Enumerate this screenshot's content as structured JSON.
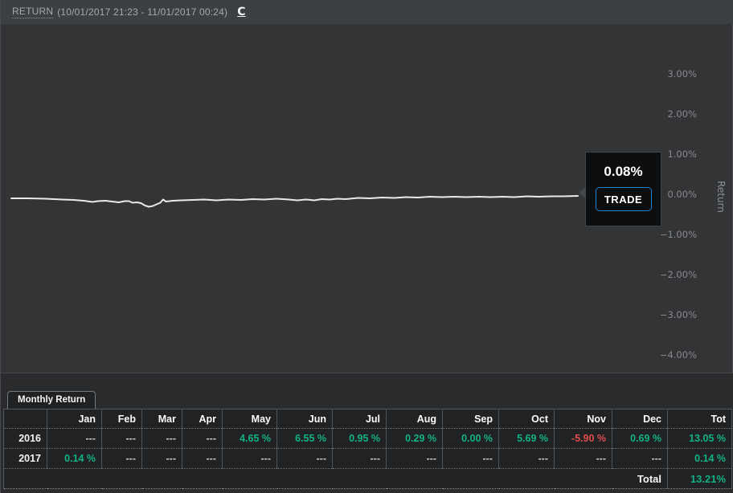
{
  "header": {
    "title": "RETURN",
    "date_range": "(10/01/2017 21:23 - 11/01/2017 00:24)",
    "refresh_icon": "C"
  },
  "chart_data": {
    "type": "line",
    "title": "Return over period 10/01/2017 21:23 - 11/01/2017 00:24",
    "xlabel": "",
    "ylabel": "Return",
    "ylim": [
      -4.6,
      3.9
    ],
    "grid": false,
    "legend": "none",
    "y_ticks": [
      "3.00%",
      "2.00%",
      "1.00%",
      "0.00%",
      "−1.00%",
      "−2.00%",
      "−3.00%",
      "−4.00%"
    ],
    "y_tick_values": [
      3,
      2,
      1,
      0,
      -1,
      -2,
      -3,
      -4
    ],
    "line_color": "#e7e9eb",
    "series": [
      {
        "name": "Return %",
        "points": [
          [
            0.0,
            -0.1
          ],
          [
            0.03,
            -0.1
          ],
          [
            0.06,
            -0.11
          ],
          [
            0.09,
            -0.13
          ],
          [
            0.11,
            -0.14
          ],
          [
            0.128,
            -0.16
          ],
          [
            0.143,
            -0.19
          ],
          [
            0.153,
            -0.17
          ],
          [
            0.166,
            -0.16
          ],
          [
            0.178,
            -0.18
          ],
          [
            0.19,
            -0.2
          ],
          [
            0.2,
            -0.17
          ],
          [
            0.208,
            -0.17
          ],
          [
            0.214,
            -0.21
          ],
          [
            0.222,
            -0.2
          ],
          [
            0.229,
            -0.22
          ],
          [
            0.236,
            -0.28
          ],
          [
            0.243,
            -0.31
          ],
          [
            0.25,
            -0.29
          ],
          [
            0.258,
            -0.24
          ],
          [
            0.263,
            -0.21
          ],
          [
            0.268,
            -0.13
          ],
          [
            0.273,
            -0.18
          ],
          [
            0.285,
            -0.16
          ],
          [
            0.3,
            -0.15
          ],
          [
            0.32,
            -0.14
          ],
          [
            0.34,
            -0.13
          ],
          [
            0.362,
            -0.15
          ],
          [
            0.384,
            -0.13
          ],
          [
            0.405,
            -0.14
          ],
          [
            0.426,
            -0.12
          ],
          [
            0.447,
            -0.13
          ],
          [
            0.468,
            -0.11
          ],
          [
            0.49,
            -0.13
          ],
          [
            0.505,
            -0.15
          ],
          [
            0.52,
            -0.13
          ],
          [
            0.535,
            -0.15
          ],
          [
            0.548,
            -0.12
          ],
          [
            0.562,
            -0.13
          ],
          [
            0.576,
            -0.11
          ],
          [
            0.59,
            -0.12
          ],
          [
            0.612,
            -0.09
          ],
          [
            0.633,
            -0.1
          ],
          [
            0.654,
            -0.08
          ],
          [
            0.676,
            -0.09
          ],
          [
            0.697,
            -0.07
          ],
          [
            0.718,
            -0.08
          ],
          [
            0.739,
            -0.06
          ],
          [
            0.76,
            -0.07
          ],
          [
            0.782,
            -0.06
          ],
          [
            0.803,
            -0.07
          ],
          [
            0.825,
            -0.06
          ],
          [
            0.846,
            -0.07
          ],
          [
            0.867,
            -0.06
          ],
          [
            0.888,
            -0.07
          ],
          [
            0.91,
            -0.05
          ],
          [
            0.931,
            -0.06
          ],
          [
            0.952,
            -0.05
          ],
          [
            0.973,
            -0.05
          ],
          [
            1.0,
            -0.04
          ]
        ]
      }
    ]
  },
  "tooltip": {
    "value": "0.08%",
    "button": "TRADE"
  },
  "bottom": {
    "tab": "Monthly Return",
    "table": {
      "columns": [
        "",
        "Jan",
        "Feb",
        "Mar",
        "Apr",
        "May",
        "Jun",
        "Jul",
        "Aug",
        "Sep",
        "Oct",
        "Nov",
        "Dec",
        "Tot"
      ],
      "rows": [
        {
          "year": "2016",
          "values": [
            "---",
            "---",
            "---",
            "---",
            "4.65 %",
            "6.55 %",
            "0.95 %",
            "0.29 %",
            "0.00 %",
            "5.69 %",
            "-5.90 %",
            "0.69 %",
            "13.05 %"
          ]
        },
        {
          "year": "2017",
          "values": [
            "0.14 %",
            "---",
            "---",
            "---",
            "---",
            "---",
            "---",
            "---",
            "---",
            "---",
            "---",
            "---",
            "0.14 %"
          ]
        }
      ],
      "total_label": "Total",
      "total_value": "13.21%"
    }
  },
  "colors": {
    "positive": "#12b286",
    "negative": "#e04c4c",
    "accent_blue": "#2285cf",
    "chart_bg": "#323436",
    "header_bg": "#3d4042",
    "tooltip_bg": "#0c0e10"
  }
}
